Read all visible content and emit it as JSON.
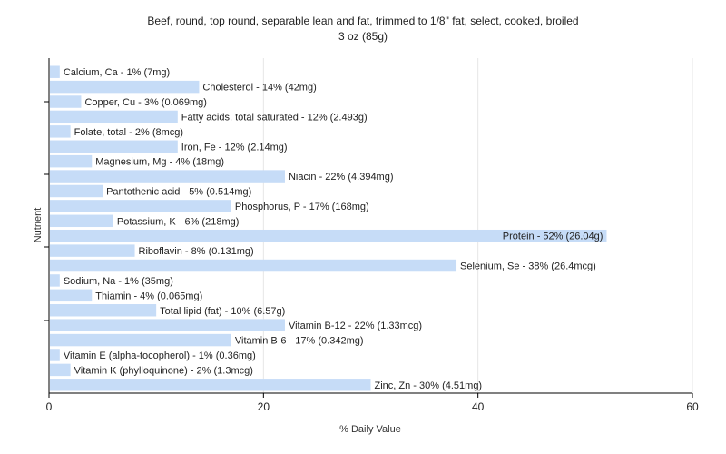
{
  "chart_data": {
    "type": "bar",
    "orientation": "horizontal",
    "title": "Beef, round, top round, separable lean and fat, trimmed to 1/8\" fat, select, cooked, broiled",
    "subtitle": "3 oz (85g)",
    "xlabel": "% Daily Value",
    "ylabel": "Nutrient",
    "xlim": [
      0,
      60
    ],
    "xticks": [
      0,
      20,
      40,
      60
    ],
    "grid": true,
    "bar_color": "#c6dcf7",
    "categories": [
      "Calcium, Ca",
      "Cholesterol",
      "Copper, Cu",
      "Fatty acids, total saturated",
      "Folate, total",
      "Iron, Fe",
      "Magnesium, Mg",
      "Niacin",
      "Pantothenic acid",
      "Phosphorus, P",
      "Potassium, K",
      "Protein",
      "Riboflavin",
      "Selenium, Se",
      "Sodium, Na",
      "Thiamin",
      "Total lipid (fat)",
      "Vitamin B-12",
      "Vitamin B-6",
      "Vitamin E (alpha-tocopherol)",
      "Vitamin K (phylloquinone)",
      "Zinc, Zn"
    ],
    "values": [
      1,
      14,
      3,
      12,
      2,
      12,
      4,
      22,
      5,
      17,
      6,
      52,
      8,
      38,
      1,
      4,
      10,
      22,
      17,
      1,
      2,
      30
    ],
    "labels": [
      "Calcium, Ca - 1% (7mg)",
      "Cholesterol - 14% (42mg)",
      "Copper, Cu - 3% (0.069mg)",
      "Fatty acids, total saturated - 12% (2.493g)",
      "Folate, total - 2% (8mcg)",
      "Iron, Fe - 12% (2.14mg)",
      "Magnesium, Mg - 4% (18mg)",
      "Niacin - 22% (4.394mg)",
      "Pantothenic acid - 5% (0.514mg)",
      "Phosphorus, P - 17% (168mg)",
      "Potassium, K - 6% (218mg)",
      "Protein - 52% (26.04g)",
      "Riboflavin - 8% (0.131mg)",
      "Selenium, Se - 38% (26.4mcg)",
      "Sodium, Na - 1% (35mg)",
      "Thiamin - 4% (0.065mg)",
      "Total lipid (fat) - 10% (6.57g)",
      "Vitamin B-12 - 22% (1.33mcg)",
      "Vitamin B-6 - 17% (0.342mg)",
      "Vitamin E (alpha-tocopherol) - 1% (0.36mg)",
      "Vitamin K (phylloquinone) - 2% (1.3mcg)",
      "Zinc, Zn - 30% (4.51mg)"
    ]
  }
}
